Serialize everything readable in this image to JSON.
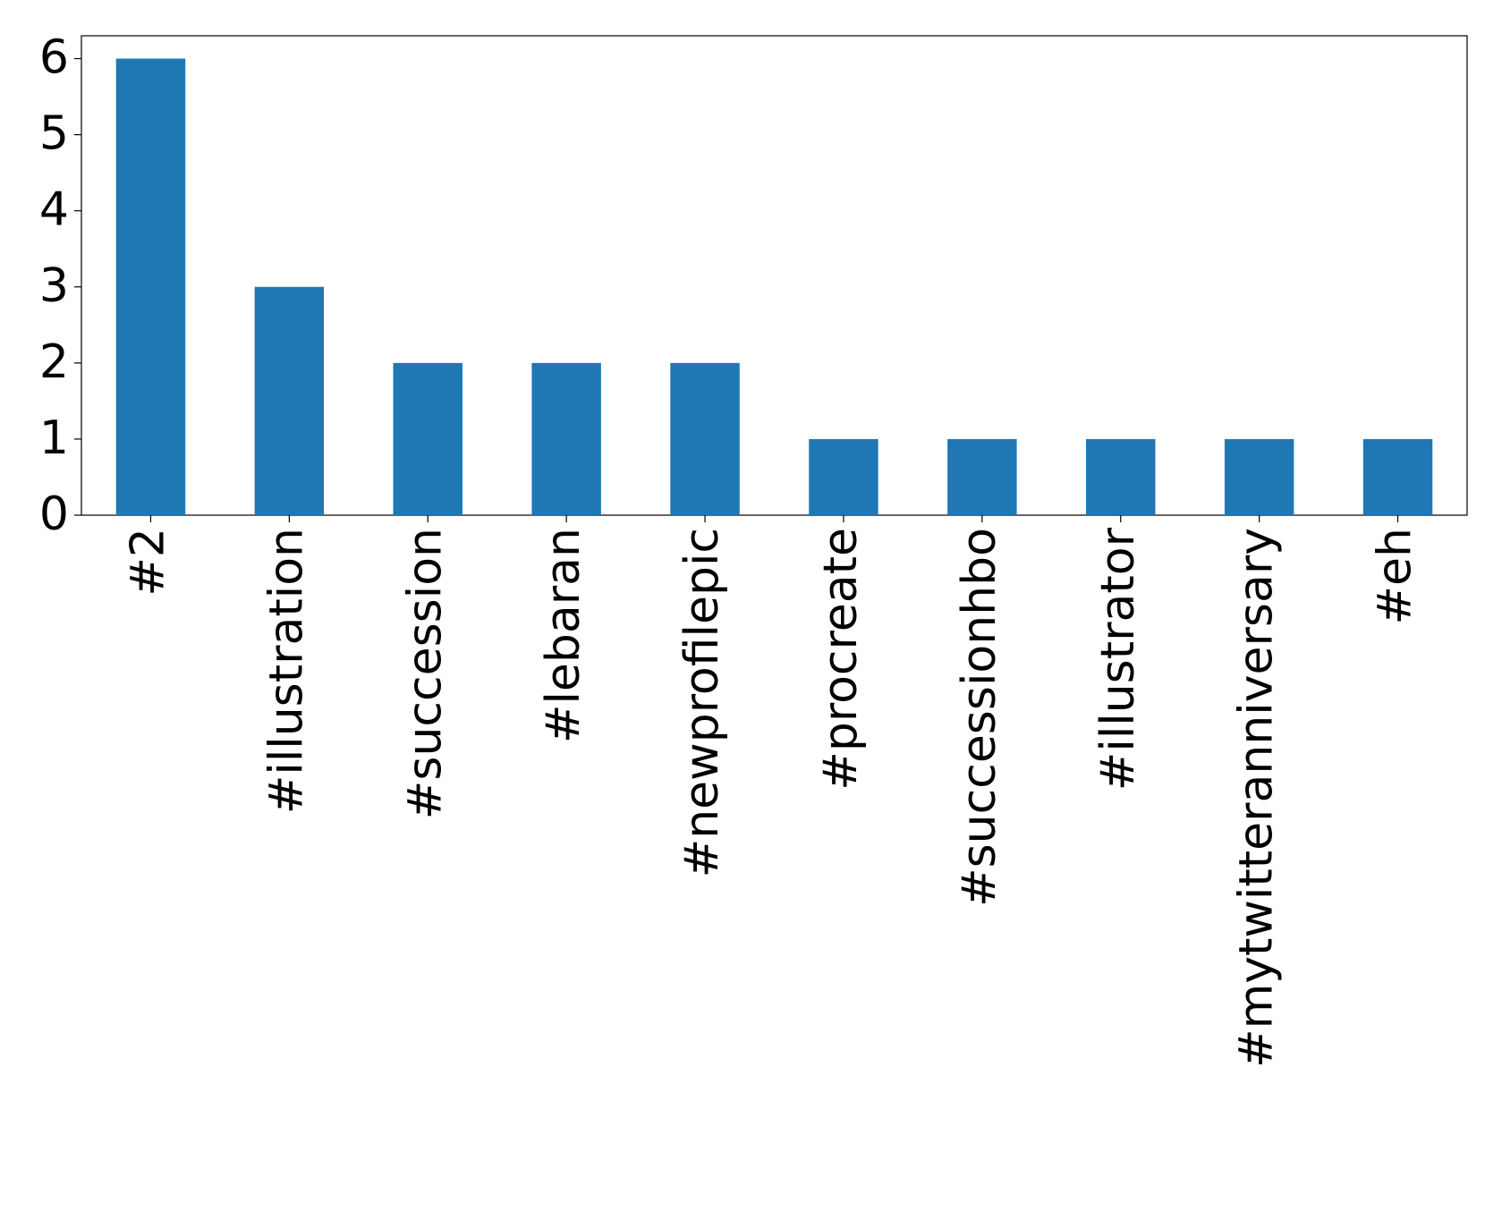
{
  "chart_data": {
    "type": "bar",
    "categories": [
      "#2",
      "#illustration",
      "#succession",
      "#lebaran",
      "#newprofilepic",
      "#procreate",
      "#successionhbo",
      "#illustrator",
      "#mytwitteranniversary",
      "#eh"
    ],
    "values": [
      6,
      3,
      2,
      2,
      2,
      1,
      1,
      1,
      1,
      1
    ],
    "color": "#1f77b4",
    "ylim": [
      0,
      6.3
    ],
    "yticks": [
      0,
      1,
      2,
      3,
      4,
      5,
      6
    ],
    "grid": false
  }
}
